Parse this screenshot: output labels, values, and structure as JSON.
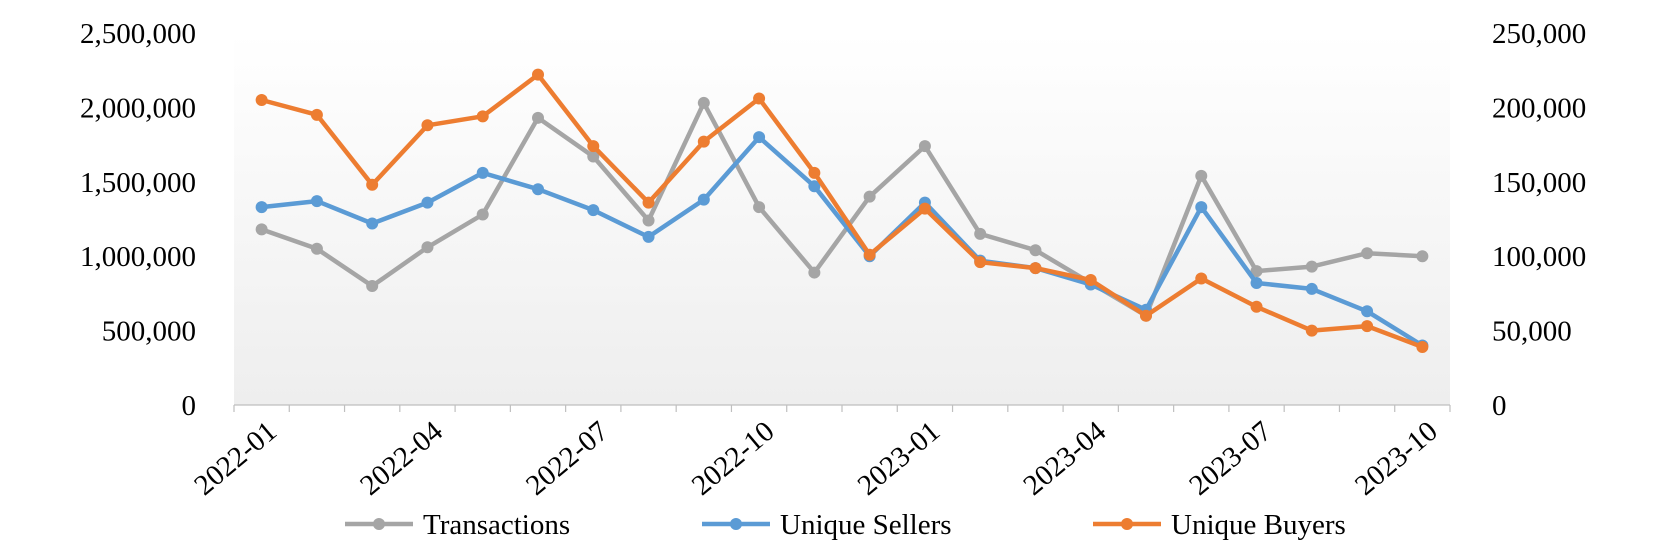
{
  "chart_data": {
    "type": "line",
    "title": "",
    "xlabel": "",
    "ylabel": "",
    "y2label": "",
    "x": [
      "2022-01",
      "2022-02",
      "2022-03",
      "2022-04",
      "2022-05",
      "2022-06",
      "2022-07",
      "2022-08",
      "2022-09",
      "2022-10",
      "2022-11",
      "2022-12",
      "2023-01",
      "2023-02",
      "2023-03",
      "2023-04",
      "2023-05",
      "2023-06",
      "2023-07",
      "2023-08",
      "2023-09",
      "2023-10"
    ],
    "x_tick_labels": [
      "2022-01",
      "2022-04",
      "2022-07",
      "2022-10",
      "2023-01",
      "2023-04",
      "2023-07",
      "2023-10"
    ],
    "ylim": [
      0,
      2500000
    ],
    "y_ticks": [
      0,
      500000,
      1000000,
      1500000,
      2000000,
      2500000
    ],
    "y_tick_labels": [
      "0",
      "500,000",
      "1,000,000",
      "1,500,000",
      "2,000,000",
      "2,500,000"
    ],
    "y2lim": [
      0,
      250000
    ],
    "y2_ticks": [
      0,
      50000,
      100000,
      150000,
      200000,
      250000
    ],
    "y2_tick_labels": [
      "0",
      "50,000",
      "100,000",
      "150,000",
      "200,000",
      "250,000"
    ],
    "grid": false,
    "legend_position": "bottom",
    "series": [
      {
        "name": "Transactions",
        "axis": "left",
        "color": "#A5A5A5",
        "values": [
          1180000,
          1050000,
          800000,
          1060000,
          1280000,
          1930000,
          1670000,
          1240000,
          2030000,
          1330000,
          890000,
          1400000,
          1740000,
          1150000,
          1040000,
          820000,
          600000,
          1540000,
          900000,
          930000,
          1020000,
          1000000
        ]
      },
      {
        "name": "Unique Sellers",
        "axis": "right",
        "color": "#5B9BD5",
        "values": [
          133000,
          137000,
          122000,
          136000,
          156000,
          145000,
          131000,
          113000,
          138000,
          180000,
          147000,
          100000,
          136000,
          97000,
          92000,
          81000,
          64000,
          133000,
          82000,
          78000,
          63000,
          40000
        ]
      },
      {
        "name": "Unique Buyers",
        "axis": "right",
        "color": "#ED7D31",
        "values": [
          205000,
          195000,
          148000,
          188000,
          194000,
          222000,
          174000,
          136000,
          177000,
          206000,
          156000,
          101000,
          132000,
          96000,
          92000,
          84000,
          60000,
          85000,
          66000,
          50000,
          53000,
          39000
        ]
      }
    ]
  }
}
